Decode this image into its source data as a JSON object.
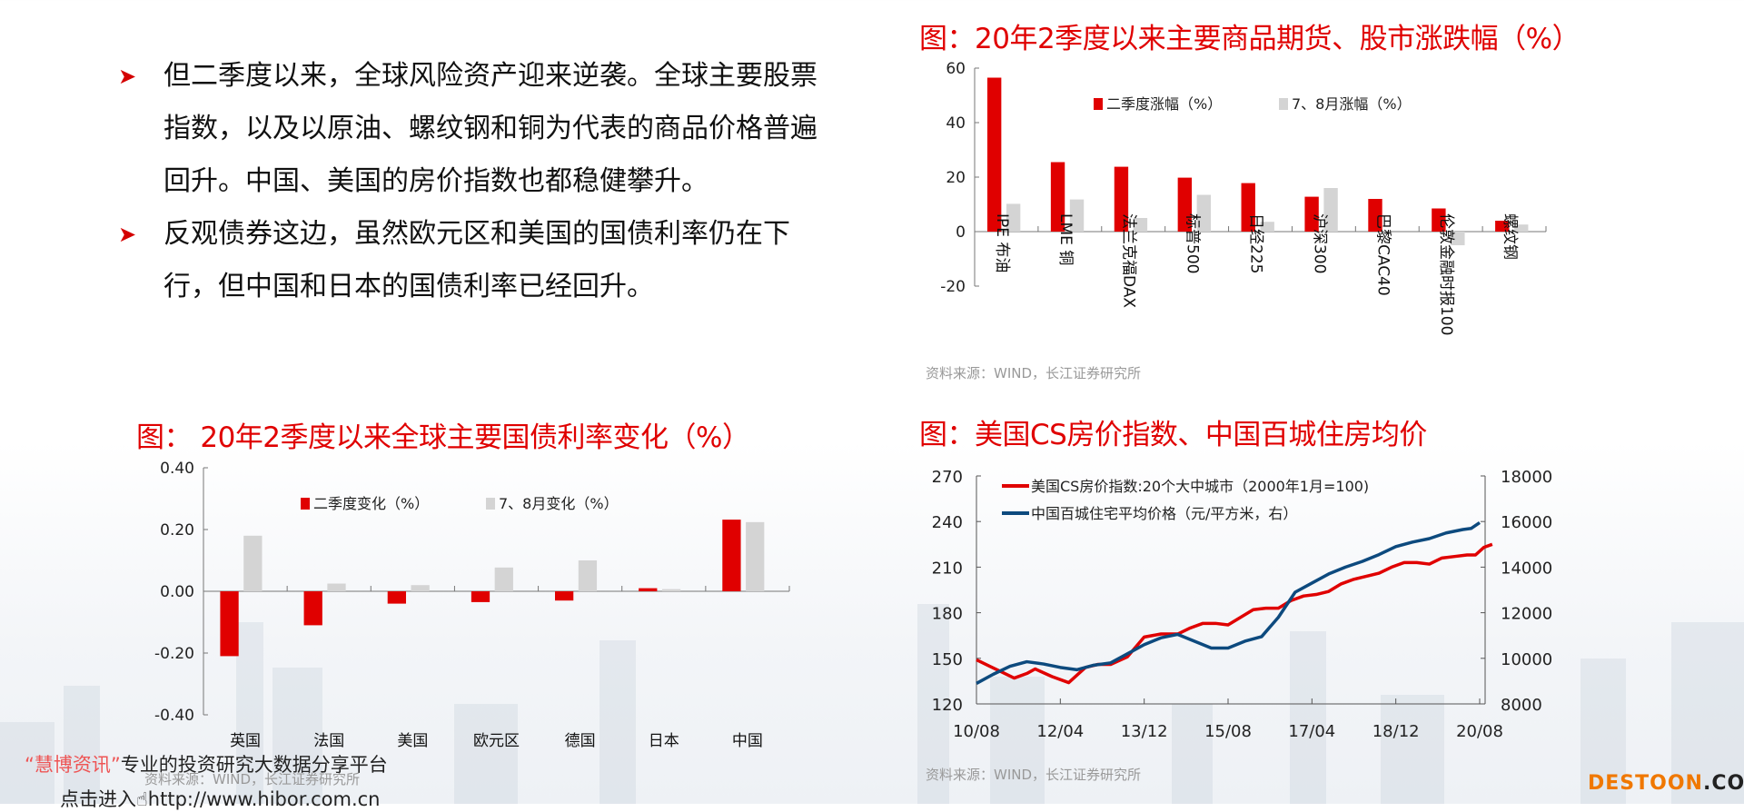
{
  "bullets": [
    "但二季度以来，全球风险资产迎来逆袭。全球主要股票指数，以及以原油、螺纹钢和铜为代表的商品价格普遍回升。中国、美国的房价指数也都稳健攀升。",
    "反观债券这边，虽然欧元区和美国的国债利率仍在下行，但中国和日本的国债利率已经回升。"
  ],
  "bullet_icon": "arrow-right-icon",
  "source_text": "资料来源：WIND，长江证券研究所",
  "watermark": {
    "quote_open": "“",
    "brand": "慧博资讯",
    "quote_close": "”",
    "slogan": "专业的投资研究大数据分享平台",
    "enter": "点击进入",
    "url": "http://www.hibor.com.cn"
  },
  "logo": {
    "main": "DESTOON",
    "suffix": ".COM"
  },
  "colors": {
    "red": "#e00000",
    "gray": "#d4d4d4",
    "blue": "#0d4a7e"
  },
  "chart_data": [
    {
      "type": "bar",
      "title": "图：20年2季度以来主要商品期货、股市涨跌幅（%）",
      "categories": [
        "IPE 布油",
        "LME 铜",
        "法兰克福DAX",
        "标普500",
        "日经225",
        "沪深300",
        "巴黎CAC40",
        "伦敦金融时报100",
        "螺纹钢"
      ],
      "series": [
        {
          "name": "二季度涨幅（%）",
          "values": [
            56.5,
            25.5,
            23.8,
            19.8,
            17.8,
            12.8,
            12.0,
            8.5,
            4.0
          ]
        },
        {
          "name": "7、8月涨幅（%）",
          "values": [
            10.2,
            11.8,
            5.0,
            13.5,
            3.6,
            16.0,
            0,
            -5.0,
            2.6
          ]
        }
      ],
      "ylim": [
        -20,
        60
      ],
      "yticks": [
        "60",
        "40",
        "20",
        "0",
        "-20"
      ],
      "ytick_values": [
        60,
        40,
        20,
        0,
        -20
      ],
      "legend": "top-center"
    },
    {
      "type": "bar",
      "title": "图： 20年2季度以来全球主要国债利率变化（%）",
      "categories": [
        "英国",
        "法国",
        "美国",
        "欧元区",
        "德国",
        "日本",
        "中国"
      ],
      "series": [
        {
          "name": "二季度变化（%）",
          "values": [
            -0.21,
            -0.11,
            -0.04,
            -0.035,
            -0.03,
            0.01,
            0.232
          ]
        },
        {
          "name": "7、8月变化（%）",
          "values": [
            0.18,
            0.025,
            0.02,
            0.077,
            0.1,
            0.007,
            0.224
          ]
        }
      ],
      "ylim": [
        -0.4,
        0.4
      ],
      "yticks": [
        "0.40",
        "0.20",
        "0.00",
        "-0.20",
        "-0.40"
      ],
      "ytick_values": [
        0.4,
        0.2,
        0,
        -0.2,
        -0.4
      ],
      "legend": "top-center"
    },
    {
      "type": "line",
      "title": "图：美国CS房价指数、中国百城住房均价",
      "xticks": [
        "10/08",
        "12/04",
        "13/12",
        "15/08",
        "17/04",
        "18/12",
        "20/08"
      ],
      "x_range_months": [
        0,
        120
      ],
      "left_ylim": [
        120,
        270
      ],
      "left_yticks": [
        "270",
        "240",
        "210",
        "180",
        "150",
        "120"
      ],
      "right_ylim": [
        8000,
        18000
      ],
      "right_yticks": [
        "18000",
        "16000",
        "14000",
        "12000",
        "10000",
        "8000"
      ],
      "series": [
        {
          "name": "美国CS房价指数:20个大中城市（2000年1月=100)",
          "axis": "left",
          "x": [
            0,
            3,
            6,
            9,
            12,
            14,
            18,
            22,
            24,
            26,
            29,
            32,
            36,
            40,
            44,
            48,
            51,
            54,
            57,
            60,
            63,
            66,
            69,
            72,
            75,
            78,
            81,
            84,
            87,
            90,
            93,
            96,
            99,
            102,
            105,
            108,
            111,
            114,
            117,
            119,
            121,
            123
          ],
          "y": [
            149,
            145,
            141,
            137,
            140,
            143,
            138,
            134,
            139,
            144,
            146,
            146,
            151,
            164,
            166,
            166,
            170,
            173,
            173,
            172,
            177,
            182,
            183,
            183,
            188,
            191,
            192,
            194,
            199,
            202,
            204,
            206,
            210,
            213,
            213,
            212,
            216,
            217,
            218,
            218,
            223,
            225
          ]
        },
        {
          "name": "中国百城住宅平均价格（元/平方米，右）",
          "axis": "right",
          "x": [
            0,
            4,
            8,
            12,
            16,
            20,
            24,
            28,
            32,
            36,
            40,
            44,
            48,
            52,
            56,
            60,
            64,
            68,
            72,
            76,
            80,
            84,
            88,
            92,
            96,
            100,
            104,
            108,
            112,
            116,
            118,
            120
          ],
          "y": [
            8900,
            9300,
            9650,
            9850,
            9750,
            9600,
            9500,
            9700,
            9800,
            10200,
            10600,
            10900,
            11050,
            10750,
            10450,
            10450,
            10750,
            10950,
            11800,
            12900,
            13300,
            13700,
            14000,
            14250,
            14550,
            14900,
            15100,
            15250,
            15500,
            15650,
            15700,
            15950
          ]
        }
      ],
      "legend": "top-left"
    }
  ]
}
